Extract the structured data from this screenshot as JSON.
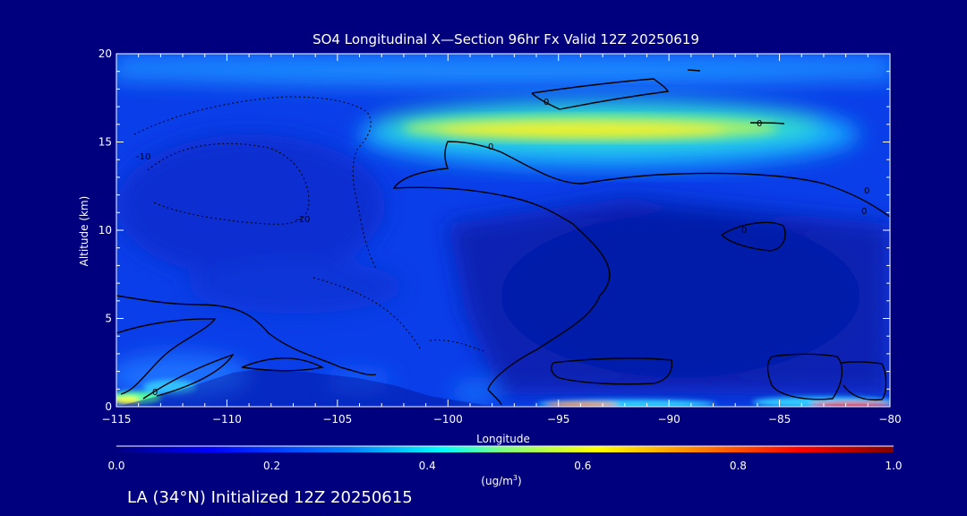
{
  "chart_data": {
    "type": "heatmap",
    "title": "SO4 Longitudinal X—Section 96hr  Fx Valid 12Z 20250619",
    "xlabel": "Longitude",
    "ylabel": "Altitude (km)",
    "xlim": [
      -115,
      -80
    ],
    "ylim": [
      0,
      20
    ],
    "x_ticks": [
      -115,
      -110,
      -105,
      -100,
      -95,
      -90,
      -85,
      -80
    ],
    "y_ticks": [
      0,
      5,
      10,
      15,
      20
    ],
    "colorbar": {
      "unit_label": "(ug/m",
      "unit_sup": "3",
      "unit_close": ")",
      "range": [
        0.0,
        1.0
      ],
      "ticks": [
        "0.0",
        "0.2",
        "0.4",
        "0.6",
        "0.8",
        "1.0"
      ],
      "colors": [
        "#00007f",
        "#0000ff",
        "#0080ff",
        "#00ffff",
        "#80ff80",
        "#ffff00",
        "#ff8000",
        "#ff0000",
        "#7f0000"
      ]
    },
    "fields": [
      {
        "name": "stratospheric-band",
        "lon": [
          -103,
          -82
        ],
        "alt": [
          12.5,
          17.5
        ],
        "value": 0.58
      },
      {
        "name": "upper-layer",
        "lon": [
          -115,
          -80
        ],
        "alt": [
          16.5,
          19.5
        ],
        "value": 0.2
      },
      {
        "name": "surface-west",
        "lon": [
          -115,
          -112
        ],
        "alt": [
          0,
          1.2
        ],
        "value": 0.75
      },
      {
        "name": "surface-east",
        "lon": [
          -95,
          -80
        ],
        "alt": [
          0,
          0.5
        ],
        "value": 0.95
      }
    ],
    "contour_labels": [
      "0",
      "0",
      "0",
      "-10",
      "-10",
      "0",
      "0",
      "0",
      "0"
    ]
  },
  "footer": {
    "text": "LA (34°N) Initialized 12Z 20250615"
  }
}
